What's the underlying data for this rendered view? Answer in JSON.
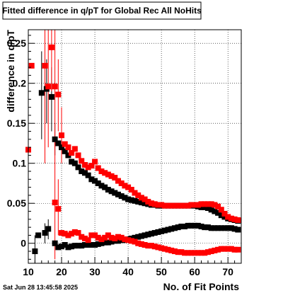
{
  "chart_data": {
    "type": "scatter",
    "title": "Fitted difference in q/pT for Global Rec All NoHits",
    "xlabel": "No. of Fit Points",
    "ylabel": "difference in q/pT",
    "timestamp": "Sat Jun 28 13:45:58 2025",
    "xlim": [
      10,
      74
    ],
    "ylim": [
      -0.025,
      0.267
    ],
    "x_ticks": [
      10,
      20,
      30,
      40,
      50,
      60,
      70
    ],
    "y_ticks": [
      0,
      0.05,
      0.1,
      0.15,
      0.2,
      0.25
    ],
    "y_tick_labels": [
      "0",
      "0.05",
      "0.1",
      "0.15",
      "0.2",
      "0.25"
    ],
    "grid": true,
    "marker": "square",
    "series": [
      {
        "color": "#000000",
        "points": [
          {
            "x": 12,
            "y": -0.01
          },
          {
            "x": 13,
            "y": 0.01
          },
          {
            "x": 14,
            "y": 0.188
          },
          {
            "x": 15,
            "y": 0.013
          },
          {
            "x": 15.5,
            "y": 0.193
          },
          {
            "x": 16,
            "y": 0.018
          },
          {
            "x": 17,
            "y": 0.183
          },
          {
            "x": 18,
            "y": 0.13
          },
          {
            "x": 19,
            "y": 0.125
          },
          {
            "x": 20,
            "y": 0.12
          },
          {
            "x": 21,
            "y": 0.115
          },
          {
            "x": 22,
            "y": 0.11
          },
          {
            "x": 23,
            "y": 0.102
          },
          {
            "x": 24,
            "y": 0.1
          },
          {
            "x": 25,
            "y": 0.095
          },
          {
            "x": 26,
            "y": 0.09
          },
          {
            "x": 27,
            "y": 0.088
          },
          {
            "x": 28,
            "y": 0.085
          },
          {
            "x": 29,
            "y": 0.08
          },
          {
            "x": 30,
            "y": 0.078
          },
          {
            "x": 31,
            "y": 0.075
          },
          {
            "x": 32,
            "y": 0.072
          },
          {
            "x": 33,
            "y": 0.07
          },
          {
            "x": 34,
            "y": 0.067
          },
          {
            "x": 35,
            "y": 0.065
          },
          {
            "x": 36,
            "y": 0.063
          },
          {
            "x": 37,
            "y": 0.061
          },
          {
            "x": 38,
            "y": 0.059
          },
          {
            "x": 39,
            "y": 0.057
          },
          {
            "x": 40,
            "y": 0.055
          },
          {
            "x": 41,
            "y": 0.054
          },
          {
            "x": 42,
            "y": 0.053
          },
          {
            "x": 43,
            "y": 0.052
          },
          {
            "x": 44,
            "y": 0.051
          },
          {
            "x": 45,
            "y": 0.05
          },
          {
            "x": 46,
            "y": 0.049
          },
          {
            "x": 47,
            "y": 0.048
          },
          {
            "x": 48,
            "y": 0.048
          },
          {
            "x": 49,
            "y": 0.047
          },
          {
            "x": 50,
            "y": 0.047
          },
          {
            "x": 51,
            "y": 0.047
          },
          {
            "x": 52,
            "y": 0.047
          },
          {
            "x": 53,
            "y": 0.047
          },
          {
            "x": 54,
            "y": 0.047
          },
          {
            "x": 55,
            "y": 0.047
          },
          {
            "x": 56,
            "y": 0.047
          },
          {
            "x": 57,
            "y": 0.047
          },
          {
            "x": 58,
            "y": 0.047
          },
          {
            "x": 59,
            "y": 0.047
          },
          {
            "x": 60,
            "y": 0.047
          },
          {
            "x": 61,
            "y": 0.046
          },
          {
            "x": 62,
            "y": 0.045
          },
          {
            "x": 63,
            "y": 0.045
          },
          {
            "x": 64,
            "y": 0.044
          },
          {
            "x": 65,
            "y": 0.042
          },
          {
            "x": 66,
            "y": 0.04
          },
          {
            "x": 67,
            "y": 0.038
          },
          {
            "x": 68,
            "y": 0.035
          },
          {
            "x": 69,
            "y": 0.033
          },
          {
            "x": 70,
            "y": 0.031
          },
          {
            "x": 71,
            "y": 0.03
          },
          {
            "x": 72,
            "y": 0.029
          },
          {
            "x": 73,
            "y": 0.028
          }
        ]
      },
      {
        "color": "#000000",
        "points": [
          {
            "x": 18,
            "y": 0.0
          },
          {
            "x": 19,
            "y": -0.005
          },
          {
            "x": 20,
            "y": -0.004
          },
          {
            "x": 21,
            "y": -0.002
          },
          {
            "x": 22,
            "y": -0.005
          },
          {
            "x": 23,
            "y": -0.004
          },
          {
            "x": 24,
            "y": -0.003
          },
          {
            "x": 25,
            "y": -0.003
          },
          {
            "x": 26,
            "y": -0.003
          },
          {
            "x": 27,
            "y": -0.002
          },
          {
            "x": 28,
            "y": -0.002
          },
          {
            "x": 29,
            "y": -0.002
          },
          {
            "x": 30,
            "y": -0.002
          },
          {
            "x": 31,
            "y": -0.001
          },
          {
            "x": 32,
            "y": 0.0
          },
          {
            "x": 33,
            "y": 0.001
          },
          {
            "x": 34,
            "y": 0.001
          },
          {
            "x": 35,
            "y": 0.002
          },
          {
            "x": 36,
            "y": 0.003
          },
          {
            "x": 37,
            "y": 0.003
          },
          {
            "x": 38,
            "y": 0.004
          },
          {
            "x": 39,
            "y": 0.004
          },
          {
            "x": 40,
            "y": 0.005
          },
          {
            "x": 41,
            "y": 0.006
          },
          {
            "x": 42,
            "y": 0.007
          },
          {
            "x": 43,
            "y": 0.008
          },
          {
            "x": 44,
            "y": 0.009
          },
          {
            "x": 45,
            "y": 0.01
          },
          {
            "x": 46,
            "y": 0.011
          },
          {
            "x": 47,
            "y": 0.012
          },
          {
            "x": 48,
            "y": 0.013
          },
          {
            "x": 49,
            "y": 0.014
          },
          {
            "x": 50,
            "y": 0.015
          },
          {
            "x": 51,
            "y": 0.016
          },
          {
            "x": 52,
            "y": 0.017
          },
          {
            "x": 53,
            "y": 0.018
          },
          {
            "x": 54,
            "y": 0.019
          },
          {
            "x": 55,
            "y": 0.02
          },
          {
            "x": 56,
            "y": 0.021
          },
          {
            "x": 57,
            "y": 0.021
          },
          {
            "x": 58,
            "y": 0.022
          },
          {
            "x": 59,
            "y": 0.022
          },
          {
            "x": 60,
            "y": 0.022
          },
          {
            "x": 61,
            "y": 0.022
          },
          {
            "x": 62,
            "y": 0.021
          },
          {
            "x": 63,
            "y": 0.02
          },
          {
            "x": 64,
            "y": 0.02
          },
          {
            "x": 65,
            "y": 0.019
          },
          {
            "x": 66,
            "y": 0.019
          },
          {
            "x": 67,
            "y": 0.019
          },
          {
            "x": 68,
            "y": 0.019
          },
          {
            "x": 69,
            "y": 0.019
          },
          {
            "x": 70,
            "y": 0.019
          },
          {
            "x": 71,
            "y": 0.019
          },
          {
            "x": 72,
            "y": 0.018
          },
          {
            "x": 73,
            "y": 0.017
          }
        ]
      },
      {
        "color": "#ff0000",
        "points": [
          {
            "x": 10,
            "y": 0.117
          },
          {
            "x": 11,
            "y": 0.222
          },
          {
            "x": 15,
            "y": 0.222
          },
          {
            "x": 16,
            "y": 0.196
          },
          {
            "x": 17,
            "y": 0.245
          },
          {
            "x": 18,
            "y": 0.196
          },
          {
            "x": 19,
            "y": 0.186
          },
          {
            "x": 20,
            "y": 0.135
          },
          {
            "x": 21,
            "y": 0.124
          },
          {
            "x": 22,
            "y": 0.12
          },
          {
            "x": 23,
            "y": 0.113
          },
          {
            "x": 24,
            "y": 0.118
          },
          {
            "x": 25,
            "y": 0.11
          },
          {
            "x": 26,
            "y": 0.103
          },
          {
            "x": 27,
            "y": 0.098
          },
          {
            "x": 28,
            "y": 0.095
          },
          {
            "x": 29,
            "y": 0.097
          },
          {
            "x": 30,
            "y": 0.102
          },
          {
            "x": 31,
            "y": 0.094
          },
          {
            "x": 32,
            "y": 0.09
          },
          {
            "x": 33,
            "y": 0.088
          },
          {
            "x": 34,
            "y": 0.086
          },
          {
            "x": 35,
            "y": 0.084
          },
          {
            "x": 36,
            "y": 0.082
          },
          {
            "x": 37,
            "y": 0.078
          },
          {
            "x": 38,
            "y": 0.075
          },
          {
            "x": 39,
            "y": 0.072
          },
          {
            "x": 40,
            "y": 0.07
          },
          {
            "x": 41,
            "y": 0.067
          },
          {
            "x": 42,
            "y": 0.063
          },
          {
            "x": 43,
            "y": 0.06
          },
          {
            "x": 44,
            "y": 0.057
          },
          {
            "x": 45,
            "y": 0.055
          },
          {
            "x": 46,
            "y": 0.052
          },
          {
            "x": 47,
            "y": 0.05
          },
          {
            "x": 48,
            "y": 0.049
          },
          {
            "x": 49,
            "y": 0.048
          },
          {
            "x": 50,
            "y": 0.048
          },
          {
            "x": 51,
            "y": 0.047
          },
          {
            "x": 52,
            "y": 0.047
          },
          {
            "x": 53,
            "y": 0.047
          },
          {
            "x": 54,
            "y": 0.047
          },
          {
            "x": 55,
            "y": 0.047
          },
          {
            "x": 56,
            "y": 0.047
          },
          {
            "x": 57,
            "y": 0.047
          },
          {
            "x": 58,
            "y": 0.047
          },
          {
            "x": 59,
            "y": 0.048
          },
          {
            "x": 60,
            "y": 0.048
          },
          {
            "x": 61,
            "y": 0.048
          },
          {
            "x": 62,
            "y": 0.049
          },
          {
            "x": 63,
            "y": 0.049
          },
          {
            "x": 64,
            "y": 0.049
          },
          {
            "x": 65,
            "y": 0.049
          },
          {
            "x": 66,
            "y": 0.048
          },
          {
            "x": 67,
            "y": 0.046
          },
          {
            "x": 68,
            "y": 0.042
          },
          {
            "x": 69,
            "y": 0.037
          },
          {
            "x": 70,
            "y": 0.033
          },
          {
            "x": 71,
            "y": 0.031
          },
          {
            "x": 72,
            "y": 0.03
          },
          {
            "x": 73,
            "y": 0.029
          }
        ]
      },
      {
        "color": "#ff0000",
        "points": [
          {
            "x": 18,
            "y": 0.051
          },
          {
            "x": 19,
            "y": 0.043
          },
          {
            "x": 20,
            "y": 0.013
          },
          {
            "x": 21,
            "y": 0.012
          },
          {
            "x": 22,
            "y": 0.01
          },
          {
            "x": 23,
            "y": 0.012
          },
          {
            "x": 24,
            "y": 0.014
          },
          {
            "x": 25,
            "y": 0.013
          },
          {
            "x": 26,
            "y": 0.008
          },
          {
            "x": 27,
            "y": 0.006
          },
          {
            "x": 28,
            "y": 0.004
          },
          {
            "x": 29,
            "y": 0.01
          },
          {
            "x": 30,
            "y": 0.01
          },
          {
            "x": 31,
            "y": 0.007
          },
          {
            "x": 32,
            "y": 0.005
          },
          {
            "x": 33,
            "y": 0.007
          },
          {
            "x": 34,
            "y": 0.01
          },
          {
            "x": 35,
            "y": 0.007
          },
          {
            "x": 36,
            "y": 0.006
          },
          {
            "x": 37,
            "y": 0.008
          },
          {
            "x": 38,
            "y": 0.007
          },
          {
            "x": 39,
            "y": 0.005
          },
          {
            "x": 40,
            "y": 0.004
          },
          {
            "x": 41,
            "y": 0.003
          },
          {
            "x": 42,
            "y": 0.002
          },
          {
            "x": 43,
            "y": 0.0
          },
          {
            "x": 44,
            "y": -0.001
          },
          {
            "x": 45,
            "y": -0.002
          },
          {
            "x": 46,
            "y": -0.003
          },
          {
            "x": 47,
            "y": -0.003
          },
          {
            "x": 48,
            "y": -0.004
          },
          {
            "x": 49,
            "y": -0.005
          },
          {
            "x": 50,
            "y": -0.006
          },
          {
            "x": 51,
            "y": -0.007
          },
          {
            "x": 52,
            "y": -0.008
          },
          {
            "x": 53,
            "y": -0.009
          },
          {
            "x": 54,
            "y": -0.01
          },
          {
            "x": 55,
            "y": -0.011
          },
          {
            "x": 56,
            "y": -0.011
          },
          {
            "x": 57,
            "y": -0.012
          },
          {
            "x": 58,
            "y": -0.012
          },
          {
            "x": 59,
            "y": -0.012
          },
          {
            "x": 60,
            "y": -0.012
          },
          {
            "x": 61,
            "y": -0.012
          },
          {
            "x": 62,
            "y": -0.012
          },
          {
            "x": 63,
            "y": -0.012
          },
          {
            "x": 64,
            "y": -0.011
          },
          {
            "x": 65,
            "y": -0.01
          },
          {
            "x": 66,
            "y": -0.009
          },
          {
            "x": 67,
            "y": -0.008
          },
          {
            "x": 68,
            "y": -0.007
          },
          {
            "x": 69,
            "y": -0.007
          },
          {
            "x": 70,
            "y": -0.007
          },
          {
            "x": 71,
            "y": -0.007
          },
          {
            "x": 72,
            "y": -0.008
          },
          {
            "x": 73,
            "y": -0.008
          }
        ]
      }
    ],
    "error_bars": [
      {
        "series": 0,
        "x": 14,
        "y": 0.188,
        "lo": 0.13,
        "hi": 0.24
      },
      {
        "series": 0,
        "x": 15.5,
        "y": 0.193,
        "lo": 0.15,
        "hi": 0.23
      },
      {
        "series": 0,
        "x": 17,
        "y": 0.183,
        "lo": 0.14,
        "hi": 0.22
      },
      {
        "series": 0,
        "x": 18,
        "y": 0.13,
        "lo": 0.11,
        "hi": 0.15
      },
      {
        "series": 1,
        "x": 12,
        "y": -0.01,
        "lo": -0.03,
        "hi": 0.01
      },
      {
        "series": 1,
        "x": 15,
        "y": 0.013,
        "lo": 0.0,
        "hi": 0.025
      },
      {
        "series": 1,
        "x": 16,
        "y": 0.018,
        "lo": 0.005,
        "hi": 0.03
      },
      {
        "series": 2,
        "x": 10,
        "y": 0.117,
        "lo": 0.09,
        "hi": 0.145
      },
      {
        "series": 2,
        "x": 15,
        "y": 0.222,
        "lo": 0.1,
        "hi": 0.267
      },
      {
        "series": 2,
        "x": 16,
        "y": 0.196,
        "lo": 0.12,
        "hi": 0.267
      },
      {
        "series": 2,
        "x": 17,
        "y": 0.245,
        "lo": 0.19,
        "hi": 0.267
      },
      {
        "series": 2,
        "x": 18,
        "y": 0.196,
        "lo": 0.12,
        "hi": 0.267
      },
      {
        "series": 2,
        "x": 19,
        "y": 0.186,
        "lo": 0.14,
        "hi": 0.23
      },
      {
        "series": 2,
        "x": 20,
        "y": 0.135,
        "lo": 0.1,
        "hi": 0.17
      },
      {
        "series": 3,
        "x": 18,
        "y": 0.051,
        "lo": -0.02,
        "hi": 0.13
      },
      {
        "series": 3,
        "x": 19,
        "y": 0.043,
        "lo": 0.01,
        "hi": 0.08
      }
    ]
  }
}
